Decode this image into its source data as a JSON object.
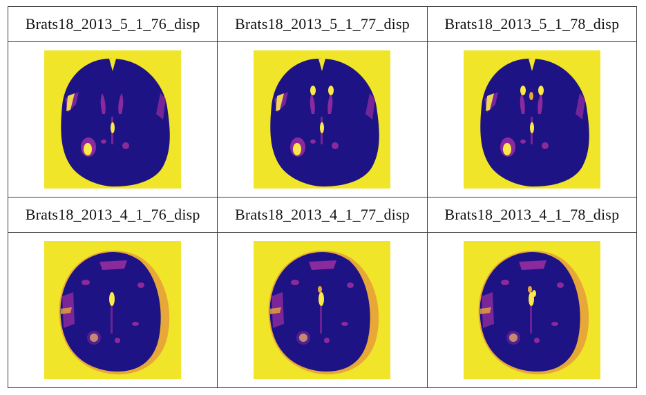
{
  "rows": [
    {
      "labels": [
        "Brats18_2013_5_1_76_disp",
        "Brats18_2013_5_1_77_disp",
        "Brats18_2013_5_1_78_disp"
      ],
      "images": [
        "brain-scan-image",
        "brain-scan-image",
        "brain-scan-image"
      ]
    },
    {
      "labels": [
        "Brats18_2013_4_1_76_disp",
        "Brats18_2013_4_1_77_disp",
        "Brats18_2013_4_1_78_disp"
      ],
      "images": [
        "brain-scan-image",
        "brain-scan-image",
        "brain-scan-image"
      ]
    }
  ],
  "colors": {
    "background": "#f0e529",
    "brain": "#1e1384",
    "brain_dark": "#2a0f7a",
    "mid": "#8b2a9c",
    "bright": "#e8a838",
    "hot": "#fbe94a"
  }
}
